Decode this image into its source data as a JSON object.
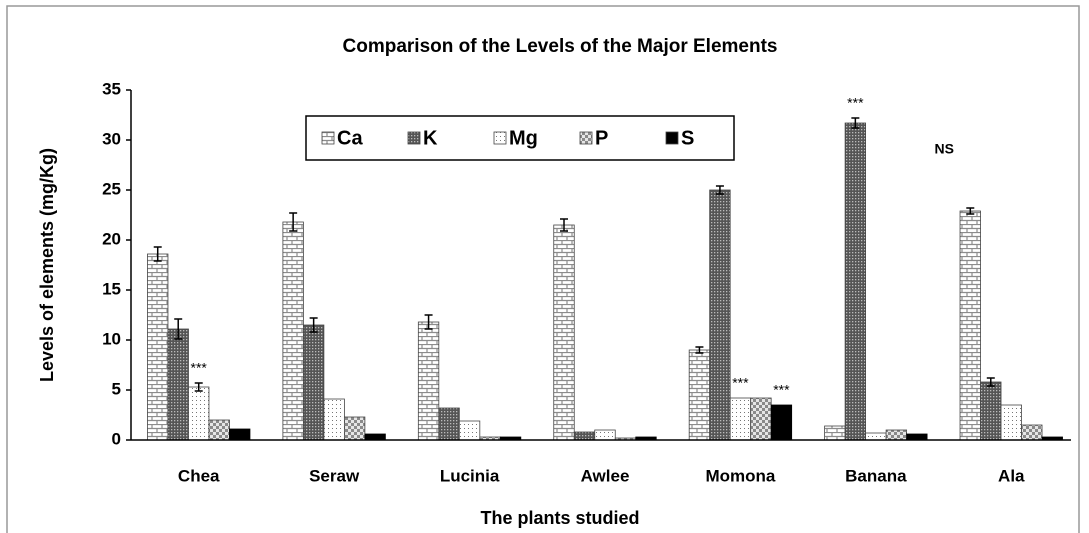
{
  "chart_data": {
    "type": "bar",
    "title": "Comparison of the Levels of the Major Elements",
    "x_label": "The plants studied",
    "y_label": "Levels of elements (mg/Kg)",
    "categories": [
      "Chea",
      "Seraw",
      "Lucinia",
      "Awlee",
      "Momona",
      "Banana",
      "Ala"
    ],
    "series": [
      {
        "name": "Ca",
        "color": "#8c8c8c",
        "pattern": "brick",
        "values": [
          18.6,
          21.8,
          11.8,
          21.5,
          9.0,
          1.4,
          22.9
        ],
        "errors": [
          0.7,
          0.9,
          0.7,
          0.6,
          0.3,
          null,
          0.3
        ]
      },
      {
        "name": "K",
        "color": "#6e6e6e",
        "pattern": "dark-dots",
        "values": [
          11.1,
          11.5,
          3.2,
          0.8,
          25.0,
          31.7,
          5.8
        ],
        "errors": [
          1.0,
          0.7,
          null,
          null,
          0.4,
          0.5,
          0.4
        ]
      },
      {
        "name": "Mg",
        "color": "#bdbdbd",
        "pattern": "light-dots",
        "values": [
          5.3,
          4.1,
          1.9,
          1.0,
          4.2,
          0.7,
          3.5
        ],
        "errors": [
          0.4,
          null,
          null,
          null,
          null,
          null,
          null
        ]
      },
      {
        "name": "P",
        "color": "#9a9a9a",
        "pattern": "checker",
        "values": [
          2.0,
          2.3,
          0.3,
          0.2,
          4.2,
          1.0,
          1.5
        ],
        "errors": [
          null,
          null,
          null,
          null,
          null,
          null,
          null
        ]
      },
      {
        "name": "S",
        "color": "#000000",
        "pattern": "solid",
        "values": [
          1.1,
          0.6,
          0.3,
          0.3,
          3.5,
          0.6,
          0.3
        ],
        "errors": [
          null,
          null,
          null,
          null,
          null,
          null,
          null
        ]
      }
    ],
    "annotations": [
      {
        "text": "***",
        "category": 0,
        "series": 2
      },
      {
        "text": "***",
        "category": 4,
        "series": 2
      },
      {
        "text": "***",
        "category": 4,
        "series": 4
      },
      {
        "text": "***",
        "category": 5,
        "series": 1
      },
      {
        "text": "NS",
        "category": 6,
        "series": 0
      }
    ],
    "ylim": [
      0,
      35
    ],
    "yticks": [
      0,
      5,
      10,
      15,
      20,
      25,
      30,
      35
    ],
    "grid": false,
    "legend": "top"
  }
}
